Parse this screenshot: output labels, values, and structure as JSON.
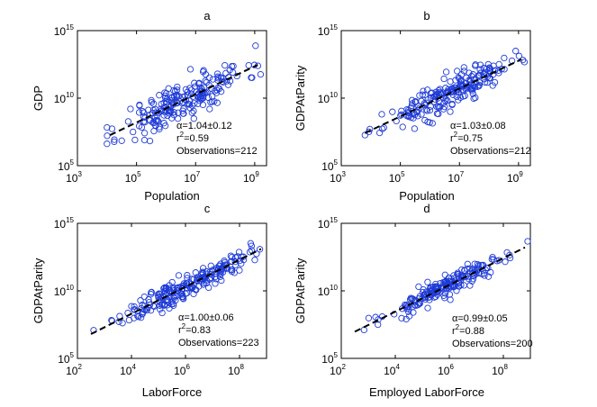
{
  "chart_data": [
    {
      "type": "scatter",
      "title": "a",
      "xlabel": "Population",
      "ylabel": "GDP",
      "xscale": "log",
      "yscale": "log",
      "xlim_exp": [
        3,
        9.4
      ],
      "ylim_exp": [
        5,
        15
      ],
      "xticks": [
        {
          "base": "10",
          "exp": "3",
          "value": 3
        },
        {
          "base": "10",
          "exp": "5",
          "value": 5
        },
        {
          "base": "10",
          "exp": "7",
          "value": 7
        },
        {
          "base": "10",
          "exp": "9",
          "value": 9
        }
      ],
      "yticks": [
        {
          "base": "10",
          "exp": "5",
          "value": 5
        },
        {
          "base": "10",
          "exp": "10",
          "value": 10
        },
        {
          "base": "10",
          "exp": "15",
          "value": 15
        }
      ],
      "fit": {
        "slope": 1.04,
        "intercept": 3.0,
        "x_range": [
          4.1,
          9.1
        ]
      },
      "scatter": {
        "n": 212,
        "x_center": 6.6,
        "x_spread": 1.05,
        "x_min": 4.0,
        "x_max": 9.2,
        "noise": 0.75,
        "seed": 11
      },
      "stats": {
        "alpha": "α=1.04±0.12",
        "r2_base": "r",
        "r2_exp": "2",
        "r2_value": "=0.59",
        "observations": "Observations=212"
      }
    },
    {
      "type": "scatter",
      "title": "b",
      "xlabel": "Population",
      "ylabel": "GDPAtParity",
      "xscale": "log",
      "yscale": "log",
      "xlim_exp": [
        3,
        9.4
      ],
      "ylim_exp": [
        5,
        15
      ],
      "xticks": [
        {
          "base": "10",
          "exp": "3",
          "value": 3
        },
        {
          "base": "10",
          "exp": "5",
          "value": 5
        },
        {
          "base": "10",
          "exp": "7",
          "value": 7
        },
        {
          "base": "10",
          "exp": "9",
          "value": 9
        }
      ],
      "yticks": [
        {
          "base": "10",
          "exp": "5",
          "value": 5
        },
        {
          "base": "10",
          "exp": "10",
          "value": 10
        },
        {
          "base": "10",
          "exp": "15",
          "value": 15
        }
      ],
      "fit": {
        "slope": 1.03,
        "intercept": 3.5,
        "x_range": [
          3.8,
          9.1
        ]
      },
      "scatter": {
        "n": 212,
        "x_center": 6.6,
        "x_spread": 1.05,
        "x_min": 3.8,
        "x_max": 9.2,
        "noise": 0.55,
        "seed": 23
      },
      "stats": {
        "alpha": "α=1.03±0.08",
        "r2_base": "r",
        "r2_exp": "2",
        "r2_value": "=0.75",
        "observations": "Observations=212"
      }
    },
    {
      "type": "scatter",
      "title": "c",
      "xlabel": "LaborForce",
      "ylabel": "GDPAtParity",
      "xscale": "log",
      "yscale": "log",
      "xlim_exp": [
        2,
        9
      ],
      "ylim_exp": [
        5,
        15
      ],
      "xticks": [
        {
          "base": "10",
          "exp": "2",
          "value": 2
        },
        {
          "base": "10",
          "exp": "4",
          "value": 4
        },
        {
          "base": "10",
          "exp": "6",
          "value": 6
        },
        {
          "base": "10",
          "exp": "8",
          "value": 8
        }
      ],
      "yticks": [
        {
          "base": "10",
          "exp": "5",
          "value": 5
        },
        {
          "base": "10",
          "exp": "10",
          "value": 10
        },
        {
          "base": "10",
          "exp": "15",
          "value": 15
        }
      ],
      "fit": {
        "slope": 1.0,
        "intercept": 4.3,
        "x_range": [
          2.5,
          8.8
        ]
      },
      "scatter": {
        "n": 223,
        "x_center": 6.0,
        "x_spread": 1.15,
        "x_min": 2.6,
        "x_max": 8.9,
        "noise": 0.45,
        "seed": 37
      },
      "stats": {
        "alpha": "α=1.00±0.06",
        "r2_base": "r",
        "r2_exp": "2",
        "r2_value": "=0.83",
        "observations": "Observations=223"
      }
    },
    {
      "type": "scatter",
      "title": "d",
      "xlabel": "Employed LaborForce",
      "ylabel": "GDPAtParity",
      "xscale": "log",
      "yscale": "log",
      "xlim_exp": [
        2,
        9
      ],
      "ylim_exp": [
        5,
        15
      ],
      "xticks": [
        {
          "base": "10",
          "exp": "2",
          "value": 2
        },
        {
          "base": "10",
          "exp": "4",
          "value": 4
        },
        {
          "base": "10",
          "exp": "6",
          "value": 6
        },
        {
          "base": "10",
          "exp": "8",
          "value": 8
        }
      ],
      "yticks": [
        {
          "base": "10",
          "exp": "5",
          "value": 5
        },
        {
          "base": "10",
          "exp": "10",
          "value": 10
        },
        {
          "base": "10",
          "exp": "15",
          "value": 15
        }
      ],
      "fit": {
        "slope": 0.99,
        "intercept": 4.5,
        "x_range": [
          2.5,
          8.8
        ]
      },
      "scatter": {
        "n": 200,
        "x_center": 5.9,
        "x_spread": 1.15,
        "x_min": 2.6,
        "x_max": 8.9,
        "noise": 0.4,
        "seed": 53
      },
      "stats": {
        "alpha": "α=0.99±0.05",
        "r2_base": "r",
        "r2_exp": "2",
        "r2_value": "=0.88",
        "observations": "Observations=200"
      }
    }
  ],
  "colors": {
    "marker": "#1f3bd6",
    "fit_line": "#000000"
  }
}
